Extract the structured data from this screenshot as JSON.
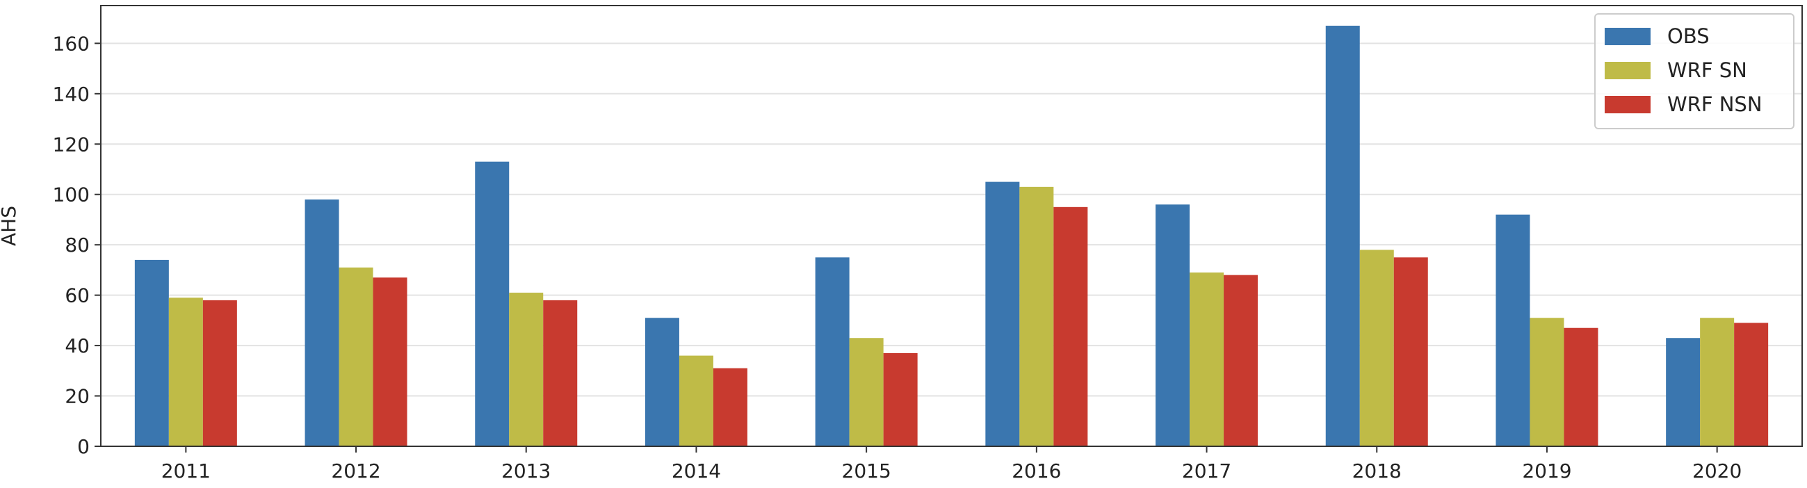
{
  "chart_data": {
    "type": "bar",
    "title": "",
    "xlabel": "",
    "ylabel": "AHS",
    "categories": [
      "2011",
      "2012",
      "2013",
      "2014",
      "2015",
      "2016",
      "2017",
      "2018",
      "2019",
      "2020"
    ],
    "series": [
      {
        "name": "OBS",
        "color": "#3a76af",
        "values": [
          74,
          98,
          113,
          51,
          75,
          105,
          96,
          167,
          92,
          43
        ]
      },
      {
        "name": "WRF SN",
        "color": "#bfbb47",
        "values": [
          59,
          71,
          61,
          36,
          43,
          103,
          69,
          78,
          51,
          51
        ]
      },
      {
        "name": "WRF NSN",
        "color": "#c83a2f",
        "values": [
          58,
          67,
          58,
          31,
          37,
          95,
          68,
          75,
          47,
          49
        ]
      }
    ],
    "ylim": [
      0,
      175
    ],
    "yticks": [
      0,
      20,
      40,
      60,
      80,
      100,
      120,
      140,
      160
    ],
    "grid": "horizontal",
    "legend_position": "top-right"
  }
}
